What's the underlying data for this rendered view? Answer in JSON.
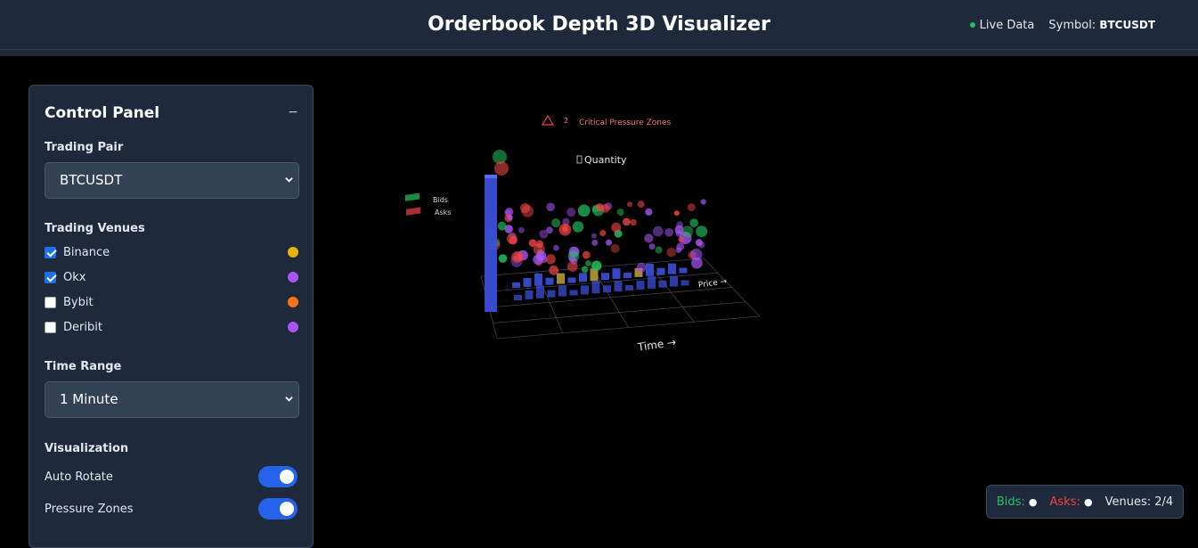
{
  "header": {
    "title": "Orderbook Depth 3D Visualizer",
    "live_label": "Live Data",
    "symbol_label": "Symbol:",
    "symbol_value": "BTCUSDT"
  },
  "panel": {
    "title": "Control Panel",
    "collapse_glyph": "−",
    "trading_pair_label": "Trading Pair",
    "trading_pair_value": "BTCUSDT",
    "venues_label": "Trading Venues",
    "venues": [
      {
        "label": "Binance",
        "checked": true,
        "color": "#eab308"
      },
      {
        "label": "Okx",
        "checked": true,
        "color": "#a855f7"
      },
      {
        "label": "Bybit",
        "checked": false,
        "color": "#f97316"
      },
      {
        "label": "Deribit",
        "checked": false,
        "color": "#a855f7"
      }
    ],
    "time_range_label": "Time Range",
    "time_range_value": "1 Minute",
    "visualization_label": "Visualization",
    "toggles": [
      {
        "label": "Auto Rotate",
        "on": true
      },
      {
        "label": "Pressure Zones",
        "on": true
      }
    ]
  },
  "viz": {
    "pressure_count": "2",
    "pressure_label": "Critical Pressure Zones",
    "quantity_label": "Quantity",
    "time_axis_label": "Time →",
    "price_axis_label": "Price →",
    "legend_bids": "Bids",
    "legend_asks": "Asks",
    "colors": {
      "bids": "#22c55e",
      "asks": "#ef4444",
      "venue": "#a855f7",
      "bars": "#3b4fd8",
      "bars_gold": "#b59a3c"
    }
  },
  "status": {
    "bids_label": "Bids:",
    "asks_label": "Asks:",
    "dot": "●",
    "venues_text": "Venues: 2/4"
  }
}
